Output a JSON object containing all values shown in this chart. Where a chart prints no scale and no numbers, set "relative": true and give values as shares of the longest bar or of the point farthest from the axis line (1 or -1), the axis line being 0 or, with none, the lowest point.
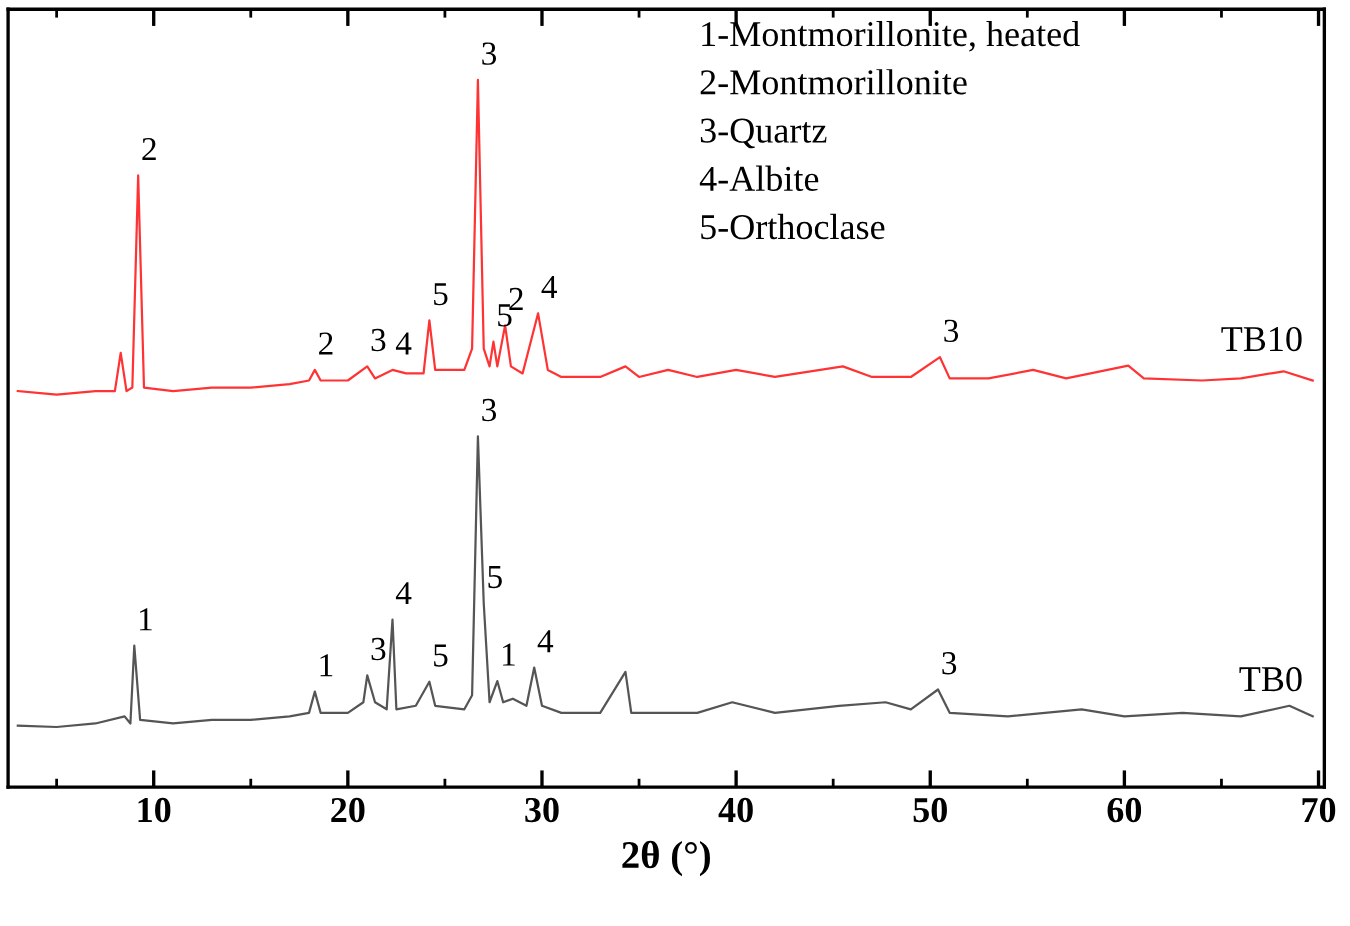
{
  "chart_data": {
    "type": "line",
    "relative": true,
    "xlabel": "2θ (°)",
    "xlim": [
      2.5,
      70.3
    ],
    "xticks": [
      {
        "value": 5,
        "label": null
      },
      10,
      {
        "value": 15,
        "label": null
      },
      20,
      {
        "value": 25,
        "label": null
      },
      30,
      {
        "value": 35,
        "label": null
      },
      40,
      {
        "value": 45,
        "label": null
      },
      50,
      {
        "value": 55,
        "label": null
      },
      60,
      {
        "value": 65,
        "label": null
      },
      70
    ],
    "grid": false,
    "legend": false,
    "marker": "none",
    "line_style": "solid",
    "series": [
      {
        "name": "TB10",
        "color": "#ff3333",
        "x": [
          3.0,
          5,
          7,
          8.0,
          8.3,
          8.6,
          8.9,
          9.2,
          9.5,
          11,
          13,
          15,
          17,
          18.0,
          18.3,
          18.6,
          20,
          21.0,
          21.4,
          22.3,
          23,
          23.9,
          24.2,
          24.5,
          26.0,
          26.4,
          26.7,
          27.0,
          27.3,
          27.5,
          27.7,
          28.1,
          28.4,
          29.0,
          29.8,
          30.3,
          31,
          33,
          34.3,
          35,
          36.5,
          38,
          40,
          42,
          45.5,
          47,
          49,
          50.5,
          51,
          53,
          55.3,
          57,
          60.2,
          61,
          64,
          66,
          68.2,
          69.7
        ],
        "values": [
          0.56,
          0.555,
          0.56,
          0.56,
          0.614,
          0.56,
          0.565,
          0.865,
          0.565,
          0.56,
          0.565,
          0.565,
          0.57,
          0.575,
          0.59,
          0.575,
          0.575,
          0.595,
          0.578,
          0.59,
          0.585,
          0.585,
          0.66,
          0.59,
          0.59,
          0.62,
          1.0,
          0.62,
          0.595,
          0.63,
          0.595,
          0.653,
          0.595,
          0.585,
          0.67,
          0.59,
          0.58,
          0.58,
          0.595,
          0.58,
          0.59,
          0.58,
          0.59,
          0.58,
          0.595,
          0.58,
          0.58,
          0.608,
          0.578,
          0.578,
          0.59,
          0.578,
          0.596,
          0.578,
          0.575,
          0.578,
          0.588,
          0.575
        ]
      },
      {
        "name": "TB0",
        "color": "#555555",
        "x": [
          3.0,
          5,
          7,
          8.5,
          8.8,
          9.0,
          9.3,
          11,
          13,
          15,
          17,
          18.0,
          18.3,
          18.6,
          20,
          20.8,
          21.0,
          21.4,
          22.0,
          22.3,
          22.5,
          23.5,
          24.2,
          24.5,
          26.0,
          26.4,
          26.7,
          27.0,
          27.3,
          27.7,
          28.0,
          28.5,
          29.2,
          29.6,
          30.0,
          31,
          33,
          34.3,
          34.6,
          36,
          38,
          39.8,
          42,
          45.3,
          47.7,
          49,
          50.4,
          51,
          54,
          57.8,
          60,
          63,
          66,
          68.5,
          69.7
        ],
        "values": [
          0.087,
          0.085,
          0.09,
          0.1,
          0.09,
          0.2,
          0.095,
          0.09,
          0.095,
          0.095,
          0.1,
          0.105,
          0.135,
          0.105,
          0.105,
          0.12,
          0.158,
          0.12,
          0.11,
          0.237,
          0.11,
          0.115,
          0.149,
          0.115,
          0.11,
          0.13,
          0.496,
          0.26,
          0.12,
          0.15,
          0.12,
          0.125,
          0.115,
          0.169,
          0.115,
          0.105,
          0.105,
          0.163,
          0.105,
          0.105,
          0.105,
          0.12,
          0.105,
          0.115,
          0.12,
          0.11,
          0.138,
          0.105,
          0.1,
          0.11,
          0.1,
          0.105,
          0.1,
          0.115,
          0.1
        ]
      }
    ],
    "annotations": [
      "1-Montmorillonite, heated",
      "2-Montmorillonite",
      "3-Quartz",
      "4-Albite",
      "5-Orthoclase",
      {
        "text": "2",
        "x": 9.2,
        "y": 0.865
      },
      {
        "text": "2",
        "x": 18.3,
        "y": 0.59
      },
      {
        "text": "3",
        "x": 21.0,
        "y": 0.595
      },
      {
        "text": "4",
        "x": 22.3,
        "y": 0.59
      },
      {
        "text": "5",
        "x": 24.2,
        "y": 0.66
      },
      {
        "text": "3",
        "x": 26.7,
        "y": 1.0
      },
      {
        "text": "5",
        "x": 27.5,
        "y": 0.63
      },
      {
        "text": "2",
        "x": 28.1,
        "y": 0.653
      },
      {
        "text": "4",
        "x": 29.8,
        "y": 0.67
      },
      {
        "text": "3",
        "x": 50.5,
        "y": 0.608
      },
      {
        "text": "1",
        "x": 9.0,
        "y": 0.2
      },
      {
        "text": "1",
        "x": 18.3,
        "y": 0.135
      },
      {
        "text": "3",
        "x": 21.0,
        "y": 0.158
      },
      {
        "text": "4",
        "x": 22.3,
        "y": 0.237
      },
      {
        "text": "5",
        "x": 24.2,
        "y": 0.149
      },
      {
        "text": "3",
        "x": 26.7,
        "y": 0.496
      },
      {
        "text": "5",
        "x": 27.0,
        "y": 0.26
      },
      {
        "text": "1",
        "x": 27.7,
        "y": 0.15
      },
      {
        "text": "4",
        "x": 29.6,
        "y": 0.169
      },
      {
        "text": "3",
        "x": 50.4,
        "y": 0.138
      }
    ]
  }
}
